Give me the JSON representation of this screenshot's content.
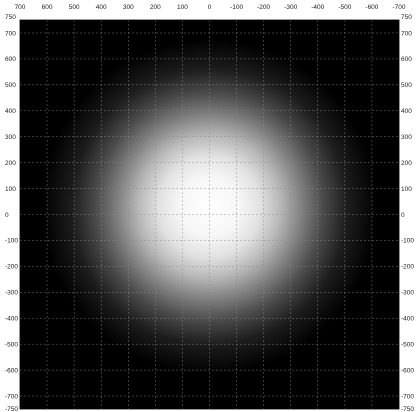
{
  "chart_data": {
    "type": "heatmap",
    "title": "",
    "xlabel": "",
    "ylabel": "",
    "x_axis": {
      "direction": "descending",
      "range": [
        700,
        -700
      ],
      "ticks": [
        "700",
        "600",
        "500",
        "400",
        "300",
        "200",
        "100",
        "0",
        "-100",
        "-200",
        "-300",
        "-400",
        "-500",
        "-600",
        "-700"
      ]
    },
    "y_axis": {
      "range": [
        -750,
        750
      ],
      "ticks": [
        "750",
        "700",
        "600",
        "500",
        "400",
        "300",
        "200",
        "100",
        "0",
        "-100",
        "-200",
        "-300",
        "-400",
        "-500",
        "-600",
        "-700",
        "-750"
      ]
    },
    "grid": true,
    "grid_step": 100,
    "colormap": "gray",
    "intensity_profile": {
      "shape": "radial-falloff",
      "center": [
        0,
        30
      ],
      "radius_full": 170,
      "radius_zero": 620,
      "max_value": 1.0,
      "min_value": 0.0
    },
    "colors": {
      "background": "#000000",
      "peak": "#ffffff",
      "grid": "#8a8a8a",
      "frame": "#000000"
    }
  }
}
